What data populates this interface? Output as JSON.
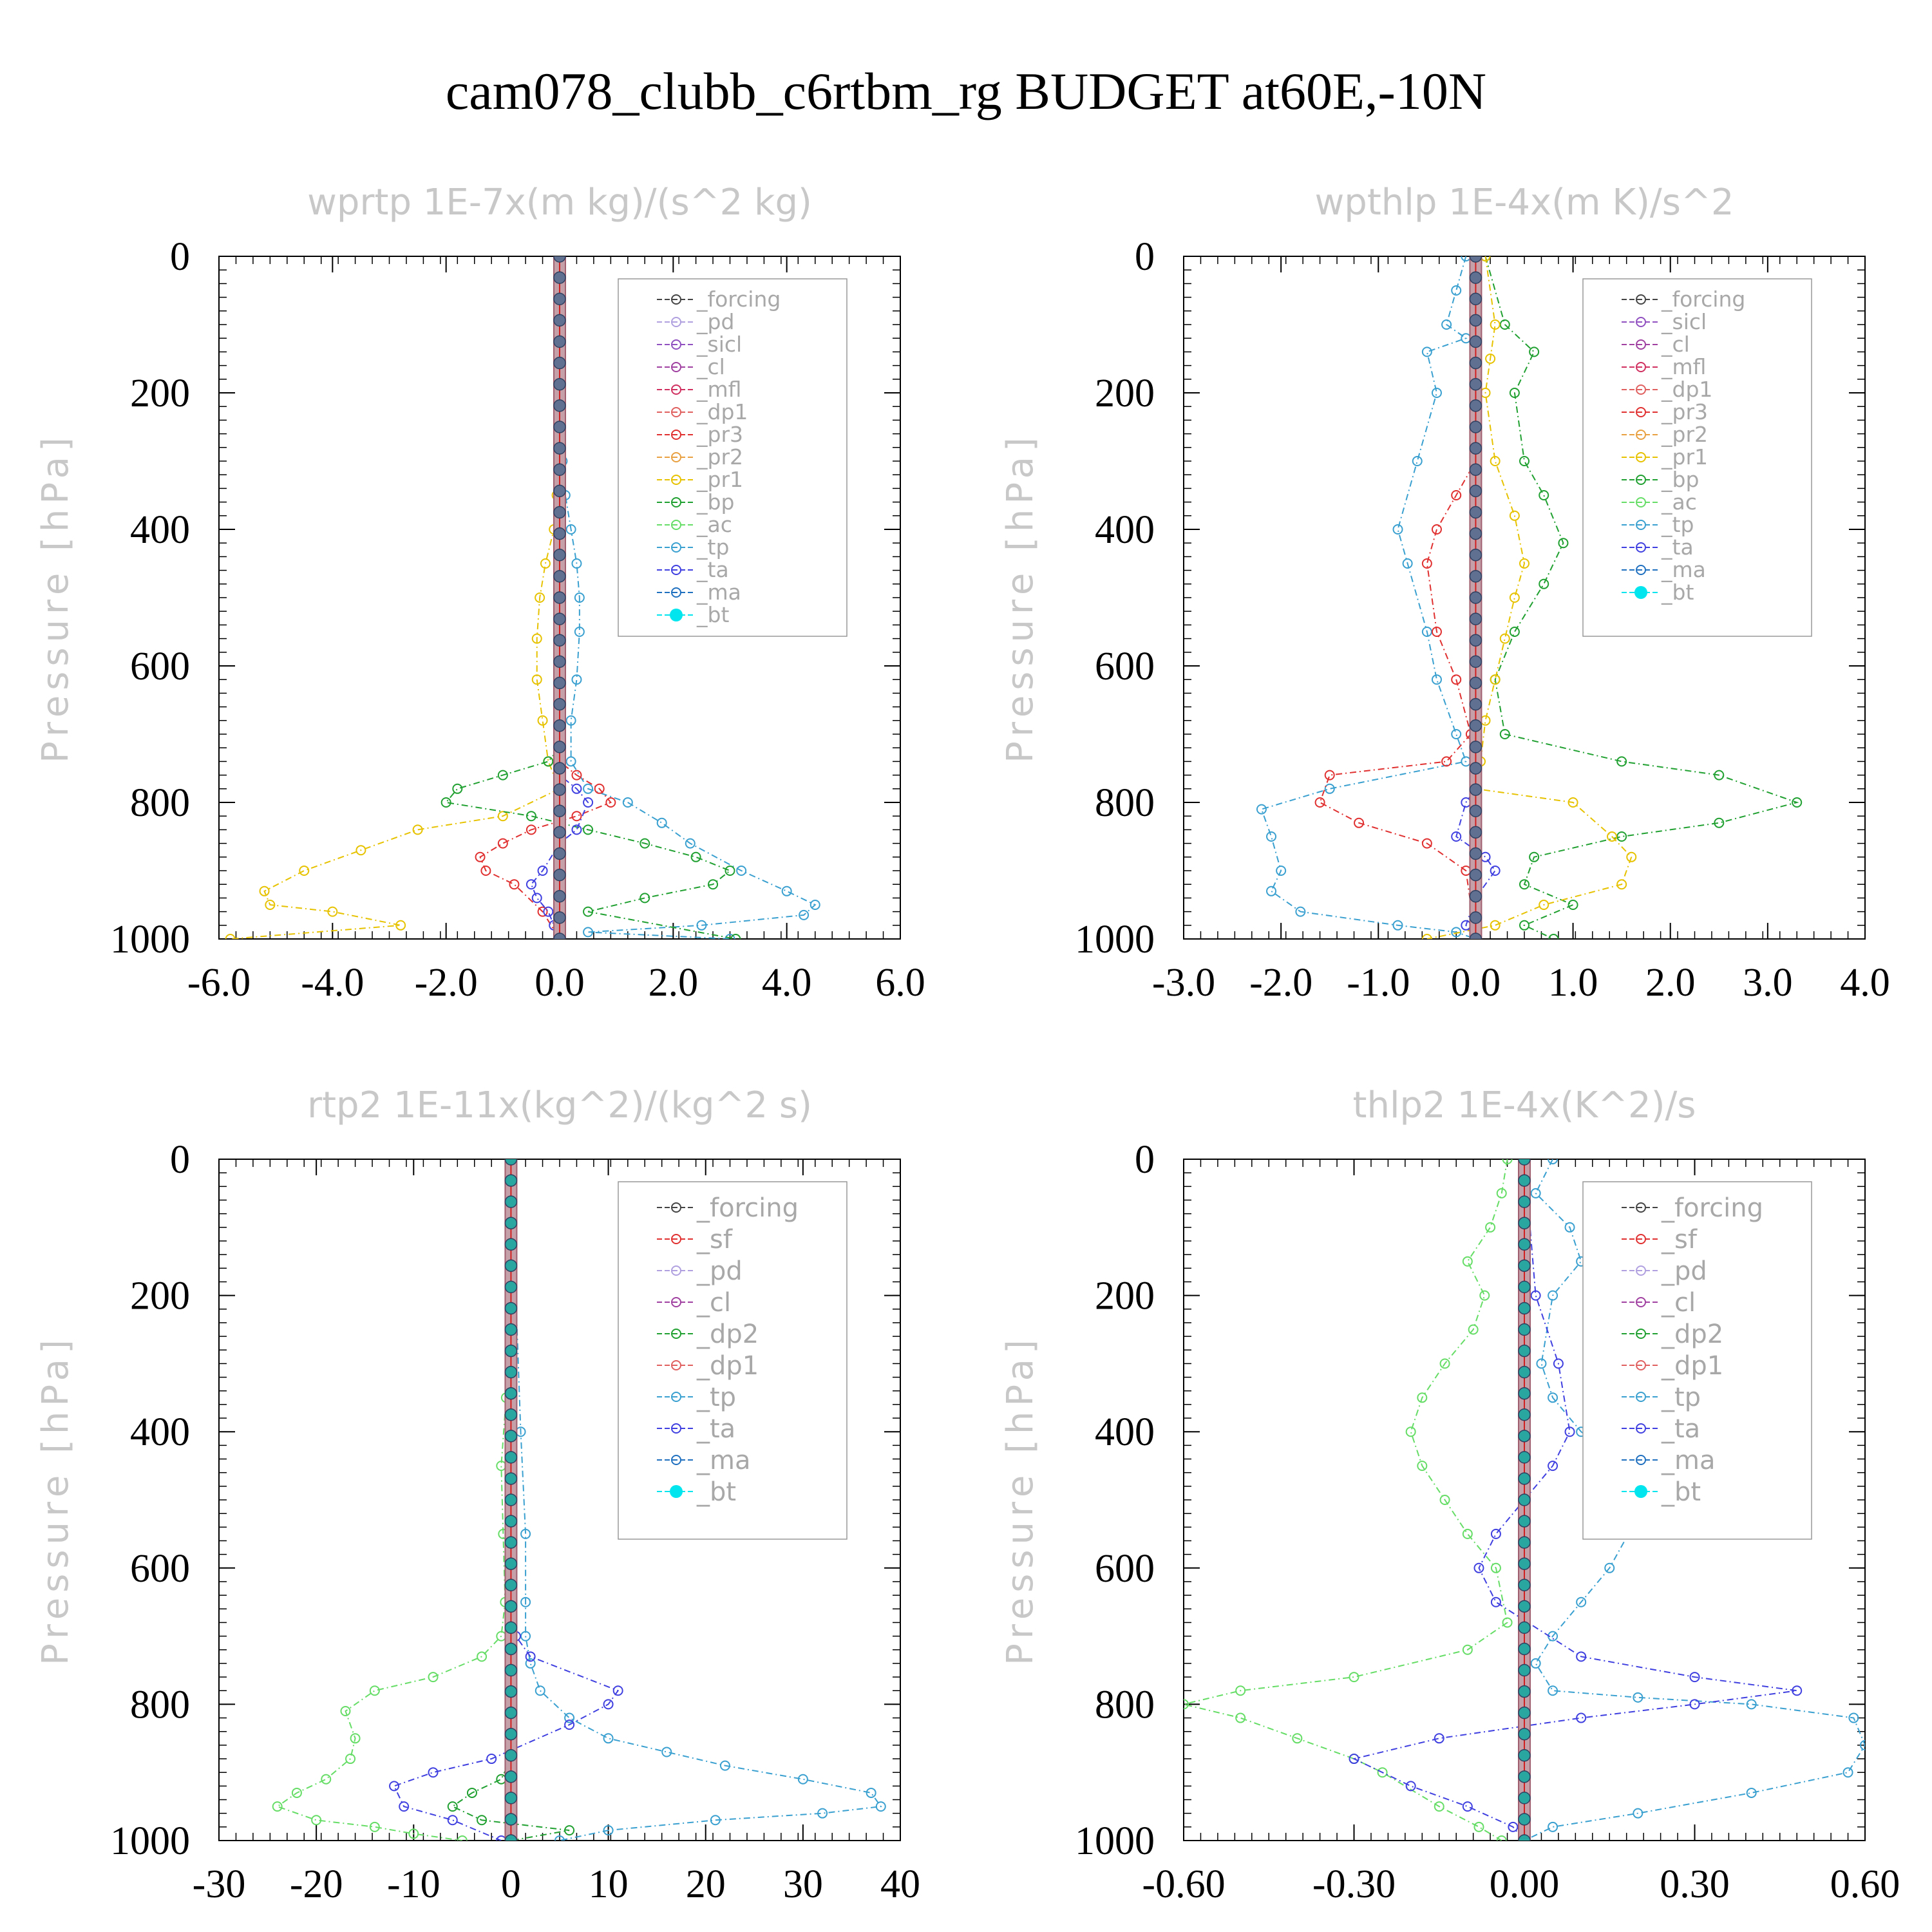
{
  "title": "cam078_clubb_c6rtbm_rg  BUDGET at60E,-10N",
  "chart_data": [
    {
      "type": "line",
      "title": "wprtp  1E-7x(m kg)/(s^2 kg)",
      "ylabel": "Pressure [hPa]",
      "xlim": [
        -6,
        6
      ],
      "ylim": [
        0,
        1000
      ],
      "xticks": [
        "-6.0",
        "-4.0",
        "-2.0",
        "0.0",
        "2.0",
        "4.0",
        "6.0"
      ],
      "yticks": [
        "0",
        "200",
        "400",
        "600",
        "800",
        "1000"
      ],
      "grid": false,
      "legend_position": "top-right",
      "legend": [
        "_forcing",
        "_pd",
        "_sicl",
        "_cl",
        "_mfl",
        "_dp1",
        "_pr3",
        "_pr2",
        "_pr1",
        "_bp",
        "_ac",
        "_tp",
        "_ta",
        "_ma",
        "_bt"
      ],
      "series": [
        {
          "name": "_pr1",
          "color": "#e6c200",
          "x": [
            0,
            0,
            -0.05,
            -0.1,
            -0.25,
            -0.35,
            -0.4,
            -0.4,
            -0.3,
            -0.2,
            0,
            -1.0,
            -2.5,
            -3.5,
            -4.5,
            -5.2,
            -5.1,
            -4.0,
            -2.8,
            -5.8
          ],
          "y": [
            0,
            300,
            350,
            400,
            450,
            500,
            560,
            620,
            680,
            740,
            780,
            820,
            840,
            870,
            900,
            930,
            950,
            960,
            980,
            1000
          ]
        },
        {
          "name": "_tp",
          "color": "#3aa0d0",
          "x": [
            0,
            0.05,
            0.1,
            0.2,
            0.3,
            0.35,
            0.35,
            0.3,
            0.2,
            0.2,
            0.5,
            1.2,
            1.8,
            2.3,
            3.2,
            4.0,
            4.5,
            4.3,
            2.5,
            0.5,
            3.0
          ],
          "y": [
            0,
            300,
            350,
            400,
            450,
            500,
            550,
            620,
            680,
            740,
            780,
            800,
            830,
            860,
            900,
            930,
            950,
            965,
            980,
            990,
            1000
          ]
        },
        {
          "name": "_bp",
          "color": "#20a030",
          "x": [
            0,
            0,
            -0.2,
            -1.0,
            -1.8,
            -2.0,
            -0.5,
            0.5,
            1.5,
            2.4,
            3.0,
            2.7,
            1.5,
            0.5,
            3.1
          ],
          "y": [
            0,
            720,
            740,
            760,
            780,
            800,
            820,
            840,
            860,
            880,
            900,
            920,
            940,
            960,
            1000
          ]
        },
        {
          "name": "_pr3",
          "color": "#e03030",
          "x": [
            0,
            0,
            0.3,
            0.7,
            0.9,
            0.3,
            -0.5,
            -1.0,
            -1.4,
            -1.3,
            -0.8,
            -0.3,
            0
          ],
          "y": [
            0,
            740,
            760,
            780,
            800,
            820,
            840,
            860,
            880,
            900,
            920,
            960,
            1000
          ]
        },
        {
          "name": "_ta",
          "color": "#4040e0",
          "x": [
            0,
            0,
            0.3,
            0.5,
            0.3,
            0,
            -0.3,
            -0.5,
            -0.4,
            -0.2,
            -0.1,
            0
          ],
          "y": [
            0,
            760,
            780,
            800,
            840,
            860,
            900,
            920,
            940,
            960,
            980,
            1000
          ]
        }
      ]
    },
    {
      "type": "line",
      "title": "wpthlp  1E-4x(m K)/s^2",
      "ylabel": "Pressure [hPa]",
      "xlim": [
        -3,
        4
      ],
      "ylim": [
        0,
        1000
      ],
      "xticks": [
        "-3.0",
        "-2.0",
        "-1.0",
        "0.0",
        "1.0",
        "2.0",
        "3.0",
        "4.0"
      ],
      "yticks": [
        "0",
        "200",
        "400",
        "600",
        "800",
        "1000"
      ],
      "grid": false,
      "legend_position": "top-right",
      "legend": [
        "_forcing",
        "_sicl",
        "_cl",
        "_mfl",
        "_dp1",
        "_pr3",
        "_pr2",
        "_pr1",
        "_bp",
        "_ac",
        "_tp",
        "_ta",
        "_ma",
        "_bt"
      ],
      "series": [
        {
          "name": "_tp",
          "color": "#3aa0d0",
          "x": [
            -0.1,
            -0.2,
            -0.3,
            -0.1,
            -0.5,
            -0.4,
            -0.6,
            -0.8,
            -0.7,
            -0.5,
            -0.4,
            -0.2,
            -0.1,
            -1.5,
            -2.2,
            -2.1,
            -2.0,
            -2.1,
            -1.8,
            -0.8,
            -0.2,
            0
          ],
          "y": [
            0,
            50,
            100,
            120,
            140,
            200,
            300,
            400,
            450,
            550,
            620,
            700,
            740,
            780,
            810,
            850,
            900,
            930,
            960,
            980,
            990,
            1000
          ]
        },
        {
          "name": "_pr3",
          "color": "#e03030",
          "x": [
            0,
            0,
            -0.2,
            -0.4,
            -0.5,
            -0.4,
            -0.2,
            -0.05,
            -0.3,
            -1.5,
            -1.6,
            -1.2,
            -0.5,
            -0.1,
            0
          ],
          "y": [
            0,
            300,
            350,
            400,
            450,
            550,
            620,
            700,
            740,
            760,
            800,
            830,
            860,
            900,
            1000
          ]
        },
        {
          "name": "_bp",
          "color": "#20a030",
          "x": [
            0.1,
            0.3,
            0.6,
            0.4,
            0.5,
            0.7,
            0.9,
            0.7,
            0.4,
            0.2,
            0.3,
            1.5,
            2.5,
            3.3,
            2.5,
            1.5,
            0.6,
            0.5,
            1.0,
            0.5,
            0.8
          ],
          "y": [
            0,
            100,
            140,
            200,
            300,
            350,
            420,
            480,
            550,
            620,
            700,
            740,
            760,
            800,
            830,
            850,
            880,
            920,
            950,
            980,
            1000
          ]
        },
        {
          "name": "_pr1",
          "color": "#e6c200",
          "x": [
            0.1,
            0.2,
            0.15,
            0.1,
            0.2,
            0.4,
            0.5,
            0.4,
            0.3,
            0.2,
            0.1,
            0.05,
            0,
            1.0,
            1.4,
            1.6,
            1.5,
            0.7,
            0.2,
            -0.5
          ],
          "y": [
            0,
            100,
            150,
            200,
            300,
            380,
            450,
            500,
            560,
            620,
            680,
            740,
            780,
            800,
            850,
            880,
            920,
            950,
            980,
            1000
          ]
        },
        {
          "name": "_ta",
          "color": "#4040e0",
          "x": [
            0,
            0,
            -0.1,
            -0.2,
            0.1,
            0.2,
            0,
            -0.1,
            0
          ],
          "y": [
            0,
            780,
            800,
            850,
            880,
            900,
            940,
            980,
            1000
          ]
        }
      ]
    },
    {
      "type": "line",
      "title": "rtp2  1E-11x(kg^2)/(kg^2 s)",
      "ylabel": "Pressure [hPa]",
      "xlim": [
        -30,
        40
      ],
      "ylim": [
        0,
        1000
      ],
      "xticks": [
        "-30",
        "-20",
        "-10",
        "0",
        "10",
        "20",
        "30",
        "40"
      ],
      "yticks": [
        "0",
        "200",
        "400",
        "600",
        "800",
        "1000"
      ],
      "grid": false,
      "legend_position": "top-right",
      "legend": [
        "_forcing",
        "_sf",
        "_pd",
        "_cl",
        "_dp2",
        "_dp1",
        "_tp",
        "_ta",
        "_ma",
        "_bt"
      ],
      "series": [
        {
          "name": "_dp1",
          "color": "#66dd66",
          "x": [
            0,
            -0.5,
            -1.0,
            -0.8,
            -0.6,
            -1.0,
            -3.0,
            -8.0,
            -14.0,
            -17.0,
            -16.0,
            -16.5,
            -19.0,
            -22.0,
            -24.0,
            -20.0,
            -14.0,
            -10.0,
            -5.0
          ],
          "y": [
            0,
            350,
            450,
            550,
            650,
            700,
            730,
            760,
            780,
            810,
            850,
            880,
            910,
            930,
            950,
            970,
            980,
            990,
            1000
          ]
        },
        {
          "name": "_tp",
          "color": "#3aa0d0",
          "x": [
            0,
            1.0,
            1.5,
            1.5,
            1.5,
            2.0,
            3.0,
            6.0,
            10.0,
            16.0,
            22.0,
            30.0,
            37.0,
            38.0,
            32.0,
            21.0,
            10.0,
            5.0
          ],
          "y": [
            0,
            400,
            550,
            650,
            700,
            740,
            780,
            820,
            850,
            870,
            890,
            910,
            930,
            950,
            960,
            970,
            985,
            1000
          ]
        },
        {
          "name": "_ta",
          "color": "#4040e0",
          "x": [
            0,
            0.5,
            2.0,
            11.0,
            10.0,
            6.0,
            -2.0,
            -8.0,
            -12.0,
            -11.0,
            -6.0,
            -1.0
          ],
          "y": [
            0,
            700,
            730,
            780,
            800,
            830,
            880,
            900,
            920,
            950,
            970,
            1000
          ]
        },
        {
          "name": "_dp2",
          "color": "#20a030",
          "x": [
            0,
            0,
            -1.0,
            -4.0,
            -6.0,
            -3.0,
            6.0,
            0
          ],
          "y": [
            0,
            880,
            910,
            930,
            950,
            970,
            985,
            1000
          ]
        }
      ]
    },
    {
      "type": "line",
      "title": "thlp2  1E-4x(K^2)/s",
      "ylabel": "Pressure [hPa]",
      "xlim": [
        -0.6,
        0.6
      ],
      "ylim": [
        0,
        1000
      ],
      "xticks": [
        "-0.60",
        "-0.30",
        "0.00",
        "0.30",
        "0.60"
      ],
      "yticks": [
        "0",
        "200",
        "400",
        "600",
        "800",
        "1000"
      ],
      "grid": false,
      "legend_position": "top-right",
      "legend": [
        "_forcing",
        "_sf",
        "_pd",
        "_cl",
        "_dp2",
        "_dp1",
        "_tp",
        "_ta",
        "_ma",
        "_bt"
      ],
      "series": [
        {
          "name": "_dp1",
          "color": "#66dd66",
          "x": [
            -0.03,
            -0.04,
            -0.06,
            -0.1,
            -0.07,
            -0.09,
            -0.14,
            -0.18,
            -0.2,
            -0.18,
            -0.14,
            -0.1,
            -0.05,
            -0.03,
            -0.1,
            -0.3,
            -0.5,
            -0.6,
            -0.5,
            -0.4,
            -0.3,
            -0.25,
            -0.15,
            -0.08,
            -0.04
          ],
          "y": [
            0,
            50,
            100,
            150,
            200,
            250,
            300,
            350,
            400,
            450,
            500,
            550,
            600,
            680,
            720,
            760,
            780,
            800,
            820,
            850,
            880,
            900,
            950,
            980,
            1000
          ]
        },
        {
          "name": "_tp",
          "color": "#3aa0d0",
          "x": [
            0.05,
            0.02,
            0.08,
            0.1,
            0.05,
            0.03,
            0.05,
            0.1,
            0.18,
            0.2,
            0.19,
            0.15,
            0.1,
            0.05,
            0.02,
            0.05,
            0.2,
            0.4,
            0.58,
            0.6,
            0.57,
            0.4,
            0.2,
            0.05,
            0
          ],
          "y": [
            0,
            50,
            100,
            150,
            200,
            300,
            350,
            400,
            450,
            500,
            540,
            600,
            650,
            700,
            740,
            780,
            790,
            800,
            820,
            860,
            900,
            930,
            960,
            980,
            1000
          ]
        },
        {
          "name": "_ta",
          "color": "#4040e0",
          "x": [
            0,
            0.02,
            0.06,
            0.08,
            0.05,
            0,
            -0.05,
            -0.08,
            -0.05,
            0.1,
            0.3,
            0.48,
            0.3,
            0.1,
            -0.15,
            -0.3,
            -0.2,
            -0.1,
            -0.02,
            0
          ],
          "y": [
            0,
            200,
            300,
            400,
            450,
            500,
            550,
            600,
            650,
            730,
            760,
            780,
            800,
            820,
            850,
            880,
            920,
            950,
            980,
            1000
          ]
        }
      ]
    }
  ]
}
